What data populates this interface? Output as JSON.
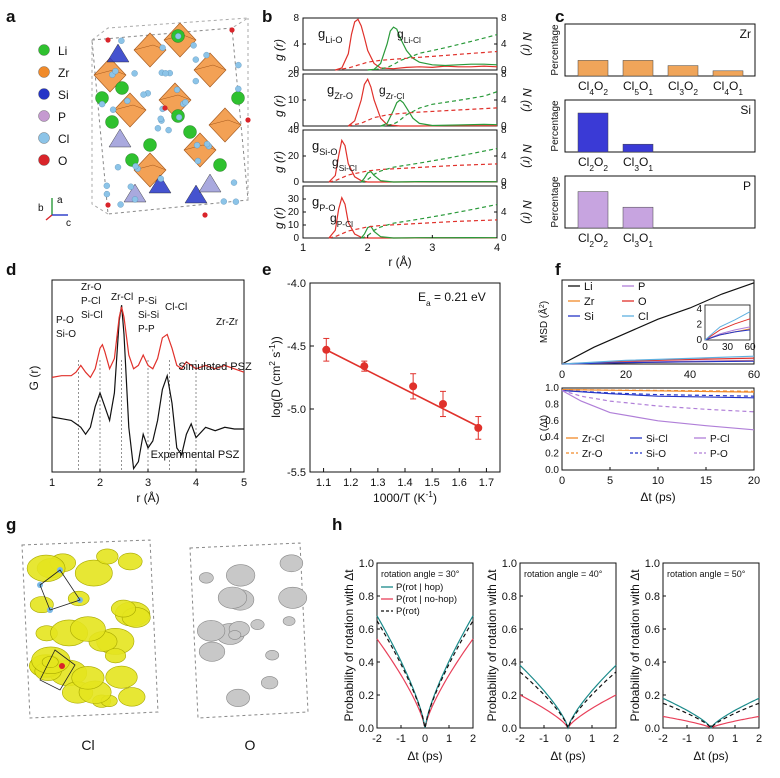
{
  "panel_letters": [
    "a",
    "b",
    "c",
    "d",
    "e",
    "f",
    "g",
    "h"
  ],
  "panel_a": {
    "legend": [
      {
        "label": "Li",
        "color": "#2fc12f"
      },
      {
        "label": "Zr",
        "color": "#f08a2a"
      },
      {
        "label": "Si",
        "color": "#2535c7"
      },
      {
        "label": "P",
        "color": "#c59ad0"
      },
      {
        "label": "Cl",
        "color": "#8cc4e8"
      },
      {
        "label": "O",
        "color": "#d9242a"
      }
    ],
    "axes": [
      "a",
      "b",
      "c"
    ]
  },
  "panel_g": {
    "labels": [
      "Cl",
      "O"
    ]
  },
  "chart_data": [
    {
      "id": "b",
      "type": "line",
      "xlabel": "r (Å)",
      "xlim": [
        1,
        4
      ],
      "xticks": [
        1,
        2,
        3,
        4
      ],
      "left_label": "g (r)",
      "right_label": "N (r)",
      "subplots": [
        {
          "glabel": "g",
          "gsub": "Li-O",
          "nlabel": "g",
          "nsub": "Li-Cl",
          "ylim": [
            0,
            8
          ],
          "yticks": [
            0,
            4,
            8
          ],
          "rticks": [
            0,
            4,
            8
          ],
          "series": [
            {
              "name": "Li-O",
              "color": "#e0312b",
              "x": [
                1.5,
                1.6,
                1.7,
                1.75,
                1.8,
                1.85,
                1.9,
                1.95,
                2.0,
                2.1,
                2.2,
                2.4,
                2.6,
                2.8,
                3.0,
                3.2,
                3.4,
                3.6,
                3.8,
                4.0
              ],
              "y": [
                0,
                0.3,
                2.5,
                5.5,
                7.4,
                7.8,
                6.8,
                5,
                3,
                1,
                0.3,
                0.2,
                0.4,
                0.5,
                0.4,
                0.6,
                0.5,
                0.5,
                0.6,
                0.5
              ]
            },
            {
              "name": "Li-Cl",
              "color": "#2a9a3a",
              "x": [
                2.0,
                2.1,
                2.2,
                2.3,
                2.35,
                2.4,
                2.45,
                2.5,
                2.6,
                2.7,
                2.8,
                3.0,
                3.2,
                3.4,
                3.6,
                3.8,
                4.0
              ],
              "y": [
                0,
                0.1,
                1,
                4,
                6,
                6.6,
                6.3,
                5,
                3,
                1.8,
                1.2,
                0.8,
                0.7,
                0.8,
                0.9,
                0.9,
                0.8
              ]
            }
          ]
        },
        {
          "glabel": "g",
          "gsub": "Zr-O",
          "nlabel": "g",
          "nsub": "Zr-Cl",
          "ylim": [
            0,
            20
          ],
          "yticks": [
            0,
            10,
            20
          ],
          "rticks": [
            0,
            4,
            8
          ],
          "series": [
            {
              "name": "Zr-O",
              "color": "#e0312b",
              "x": [
                1.7,
                1.8,
                1.9,
                1.95,
                2.0,
                2.05,
                2.1,
                2.2,
                2.3,
                2.5,
                2.8,
                3.2,
                3.6,
                4.0
              ],
              "y": [
                0,
                2,
                10,
                16,
                18,
                15,
                10,
                3,
                0.5,
                0,
                0,
                0.1,
                0.1,
                0.1
              ]
            },
            {
              "name": "Zr-Cl",
              "color": "#2a9a3a",
              "x": [
                2.2,
                2.3,
                2.4,
                2.45,
                2.5,
                2.55,
                2.6,
                2.7,
                2.8,
                3.0,
                3.4,
                3.8,
                4.0
              ],
              "y": [
                0,
                1,
                6,
                9,
                10,
                9,
                7,
                3,
                1,
                0.2,
                0.4,
                0.6,
                0.5
              ]
            }
          ]
        },
        {
          "glabel": "g",
          "gsub": "Si-O",
          "nlabel": "g",
          "nsub": "Si-Cl",
          "ylim": [
            0,
            40
          ],
          "yticks": [
            0,
            20,
            40
          ],
          "rticks": [
            0,
            4,
            8
          ],
          "series": [
            {
              "name": "Si-O",
              "color": "#e0312b",
              "x": [
                1.4,
                1.5,
                1.55,
                1.6,
                1.65,
                1.7,
                1.8,
                1.9,
                2.0,
                2.2,
                2.6,
                3.0,
                3.4,
                4.0
              ],
              "y": [
                0,
                5,
                20,
                32,
                28,
                14,
                4,
                1,
                0,
                0,
                0,
                0.2,
                0.3,
                0.2
              ]
            },
            {
              "name": "Si-Cl",
              "color": "#2a9a3a",
              "x": [
                1.9,
                1.95,
                2.0,
                2.05,
                2.1,
                2.2,
                2.4,
                2.8,
                3.2,
                3.6,
                4.0
              ],
              "y": [
                0,
                3,
                7,
                8,
                5,
                1,
                0,
                0.3,
                0.2,
                0.3,
                0.2
              ]
            }
          ]
        },
        {
          "glabel": "g",
          "gsub": "P-O",
          "nlabel": "g",
          "nsub": "P-Cl",
          "ylim": [
            0,
            40
          ],
          "yticks": [
            0,
            10,
            20,
            30
          ],
          "rticks": [
            0,
            4,
            8
          ],
          "series": [
            {
              "name": "P-O",
              "color": "#e0312b",
              "x": [
                1.4,
                1.5,
                1.55,
                1.6,
                1.65,
                1.7,
                1.8,
                1.9,
                2.0,
                2.2,
                2.6,
                3.0,
                3.4,
                4.0
              ],
              "y": [
                0,
                6,
                22,
                31,
                26,
                12,
                3,
                0.5,
                0,
                0,
                0,
                0.2,
                0.2,
                0.1
              ]
            },
            {
              "name": "P-Cl",
              "color": "#2a9a3a",
              "x": [
                1.9,
                1.95,
                2.0,
                2.05,
                2.1,
                2.2,
                2.4,
                2.8,
                3.2,
                3.6,
                4.0
              ],
              "y": [
                0,
                3,
                8,
                9,
                5,
                1,
                0,
                0.2,
                0.2,
                0.3,
                0.2
              ]
            }
          ]
        }
      ]
    },
    {
      "id": "c",
      "type": "bar",
      "ylabel": "Percentage",
      "subplots": [
        {
          "label": "Zr",
          "color": "#f0a55a",
          "categories": [
            [
              "Cl",
              "4",
              "O",
              "2"
            ],
            [
              "Cl",
              "5",
              "O",
              "1"
            ],
            [
              "Cl",
              "3",
              "O",
              "2"
            ],
            [
              "Cl",
              "4",
              "O",
              "1"
            ]
          ],
          "values": [
            0.3,
            0.3,
            0.2,
            0.1
          ]
        },
        {
          "label": "Si",
          "color": "#3a3ad6",
          "categories": [
            [
              "Cl",
              "2",
              "O",
              "2"
            ],
            [
              "Cl",
              "3",
              "O",
              "1"
            ]
          ],
          "values": [
            0.75,
            0.15
          ]
        },
        {
          "label": "P",
          "color": "#c7a4e0",
          "categories": [
            [
              "Cl",
              "2",
              "O",
              "2"
            ],
            [
              "Cl",
              "3",
              "O",
              "1"
            ]
          ],
          "values": [
            0.7,
            0.4
          ]
        }
      ]
    },
    {
      "id": "d",
      "type": "line",
      "xlabel": "r (Å)",
      "ylabel": "G (r)",
      "xlim": [
        1,
        5
      ],
      "xticks": [
        1,
        2,
        3,
        4,
        5
      ],
      "series": [
        {
          "name": "Simulated PSZ",
          "color": "#e0312b"
        },
        {
          "name": "Experimental PSZ",
          "color": "#111111"
        }
      ],
      "annotations": [
        "P-O",
        "Si-O",
        "Zr-O",
        "P-Cl",
        "Si-Cl",
        "Zr-Cl",
        "P-Si",
        "Si-Si",
        "P-P",
        "Cl-Cl",
        "Zr-Zr"
      ],
      "simulated_x": [
        1.0,
        1.2,
        1.4,
        1.5,
        1.6,
        1.7,
        1.8,
        1.9,
        2.0,
        2.05,
        2.1,
        2.2,
        2.3,
        2.4,
        2.45,
        2.5,
        2.6,
        2.7,
        2.8,
        2.9,
        3.0,
        3.1,
        3.2,
        3.3,
        3.4,
        3.5,
        3.6,
        3.7,
        3.8,
        3.9,
        4.0,
        4.2,
        4.4,
        4.6,
        4.8,
        5.0
      ],
      "simulated_y": [
        0.55,
        0.56,
        0.56,
        0.58,
        0.62,
        0.58,
        0.55,
        0.6,
        0.72,
        0.74,
        0.7,
        0.6,
        0.66,
        0.9,
        0.96,
        0.9,
        0.68,
        0.6,
        0.62,
        0.68,
        0.62,
        0.6,
        0.66,
        0.78,
        0.8,
        0.72,
        0.62,
        0.6,
        0.64,
        0.62,
        0.6,
        0.62,
        0.6,
        0.62,
        0.6,
        0.58
      ],
      "experimental_x": [
        1.0,
        1.2,
        1.4,
        1.5,
        1.6,
        1.7,
        1.8,
        1.9,
        2.0,
        2.1,
        2.2,
        2.3,
        2.4,
        2.45,
        2.5,
        2.6,
        2.7,
        2.8,
        2.9,
        3.0,
        3.1,
        3.2,
        3.3,
        3.4,
        3.5,
        3.6,
        3.7,
        3.8,
        3.9,
        4.0,
        4.2,
        4.4,
        4.6,
        4.8,
        5.0
      ],
      "experimental_y": [
        0.32,
        0.31,
        0.3,
        0.28,
        0.26,
        0.22,
        0.26,
        0.38,
        0.46,
        0.38,
        0.3,
        0.46,
        0.88,
        0.97,
        0.8,
        0.26,
        0.02,
        0.06,
        0.22,
        0.14,
        0.18,
        0.3,
        0.48,
        0.56,
        0.4,
        0.14,
        0.1,
        0.22,
        0.28,
        0.2,
        0.26,
        0.24,
        0.26,
        0.25,
        0.25
      ],
      "dashed_x": [
        1.55,
        2.0,
        2.45,
        3.0,
        3.45,
        4.0
      ]
    },
    {
      "id": "e",
      "type": "scatter",
      "xlabel": "1000/T (K",
      "xlabel_sup": "-1",
      "xlabel_end": ")",
      "ylabel": "log(D (cm",
      "ylim": [
        -5.5,
        -4.0
      ],
      "xlim": [
        1.05,
        1.75
      ],
      "xticks": [
        1.1,
        1.2,
        1.3,
        1.4,
        1.5,
        1.6,
        1.7
      ],
      "yticks": [
        -4.0,
        -4.5,
        -5.0,
        -5.5
      ],
      "annotation": "E",
      "annotation_sub": "a",
      "annotation_val": " = 0.21 eV",
      "x": [
        1.11,
        1.25,
        1.43,
        1.54,
        1.67
      ],
      "y": [
        -4.53,
        -4.66,
        -4.82,
        -4.96,
        -5.15
      ],
      "err": [
        0.09,
        0.04,
        0.1,
        0.1,
        0.09
      ],
      "fit_x": [
        1.1,
        1.68
      ],
      "fit_y": [
        -4.52,
        -5.15
      ],
      "color": "#e0312b"
    },
    {
      "id": "f_top",
      "type": "line",
      "xlabel": "",
      "ylabel": "MSD (Å",
      "xlim": [
        0,
        60
      ],
      "ylim": [
        0,
        30
      ],
      "xticks": [
        0,
        20,
        40,
        60
      ],
      "legend": [
        "Li",
        "P",
        "Zr",
        "O",
        "Si",
        "Cl"
      ],
      "series": [
        {
          "name": "Li",
          "color": "#111111",
          "x": [
            0,
            10,
            20,
            30,
            40,
            50,
            60
          ],
          "y": [
            0,
            6,
            11,
            16,
            20,
            25,
            29
          ]
        },
        {
          "name": "P",
          "color": "#b07fd8",
          "x": [
            0,
            20,
            40,
            60
          ],
          "y": [
            0,
            0.6,
            1.0,
            1.3
          ]
        },
        {
          "name": "Zr",
          "color": "#f08a2a",
          "x": [
            0,
            20,
            40,
            60
          ],
          "y": [
            0,
            0.5,
            0.8,
            1.1
          ]
        },
        {
          "name": "O",
          "color": "#e0312b",
          "x": [
            0,
            20,
            40,
            60
          ],
          "y": [
            0,
            1.0,
            1.6,
            2.1
          ]
        },
        {
          "name": "Si",
          "color": "#2535c7",
          "x": [
            0,
            20,
            40,
            60
          ],
          "y": [
            0,
            0.5,
            0.8,
            1.0
          ]
        },
        {
          "name": "Cl",
          "color": "#5fb0e0",
          "x": [
            0,
            20,
            40,
            60
          ],
          "y": [
            0,
            1.3,
            2.0,
            2.8
          ]
        }
      ],
      "inset": {
        "xticks": [
          0,
          30,
          60
        ],
        "yticks": [
          0,
          2,
          4
        ]
      }
    },
    {
      "id": "f_bottom",
      "type": "line",
      "xlabel": "Δt (ps)",
      "ylabel": "C (Δt)",
      "xlim": [
        0,
        20
      ],
      "ylim": [
        0,
        1.0
      ],
      "xticks": [
        0,
        5,
        10,
        15,
        20
      ],
      "yticks": [
        0.0,
        0.2,
        0.4,
        0.6,
        0.8,
        1.0
      ],
      "legend": [
        "Zr-Cl",
        "Si-Cl",
        "P-Cl",
        "Zr-O",
        "Si-O",
        "P-O"
      ],
      "series": [
        {
          "name": "Zr-Cl",
          "color": "#f08a2a",
          "dash": false,
          "x": [
            0,
            20
          ],
          "y": [
            0.98,
            0.95
          ]
        },
        {
          "name": "Si-Cl",
          "color": "#2535c7",
          "dash": false,
          "x": [
            0,
            5,
            10,
            20
          ],
          "y": [
            0.97,
            0.93,
            0.9,
            0.88
          ]
        },
        {
          "name": "P-Cl",
          "color": "#b07fd8",
          "dash": false,
          "x": [
            0,
            2,
            5,
            10,
            15,
            20
          ],
          "y": [
            0.97,
            0.84,
            0.7,
            0.6,
            0.54,
            0.49
          ]
        },
        {
          "name": "Zr-O",
          "color": "#f08a2a",
          "dash": true,
          "x": [
            0,
            20
          ],
          "y": [
            0.98,
            0.96
          ]
        },
        {
          "name": "Si-O",
          "color": "#2535c7",
          "dash": true,
          "x": [
            0,
            5,
            10,
            20
          ],
          "y": [
            0.97,
            0.94,
            0.92,
            0.9
          ]
        },
        {
          "name": "P-O",
          "color": "#b07fd8",
          "dash": true,
          "x": [
            0,
            2,
            5,
            10,
            15,
            20
          ],
          "y": [
            0.97,
            0.9,
            0.84,
            0.78,
            0.74,
            0.71
          ]
        }
      ]
    },
    {
      "id": "h",
      "type": "line",
      "xlabel": "Δt (ps)",
      "ylabel": "Probability of rotation with Δt",
      "xlim": [
        -2,
        2
      ],
      "ylim": [
        0,
        1.0
      ],
      "xticks": [
        -2,
        -1,
        0,
        1,
        2
      ],
      "yticks": [
        0.0,
        0.2,
        0.4,
        0.6,
        0.8,
        1.0
      ],
      "legend": [
        "P(rot | hop)",
        "P(rot | no-hop)",
        "P(rot)"
      ],
      "subplots": [
        {
          "title": "rotation angle = 30°",
          "hop": 0.68,
          "nohop": 0.54,
          "all": 0.65
        },
        {
          "title": "rotation angle = 40°",
          "hop": 0.38,
          "nohop": 0.2,
          "all": 0.34
        },
        {
          "title": "rotation angle = 50°",
          "hop": 0.18,
          "nohop": 0.07,
          "all": 0.15
        }
      ],
      "colors": {
        "hop": "#1a8a8a",
        "nohop": "#e8405a",
        "all": "#111111"
      }
    }
  ]
}
